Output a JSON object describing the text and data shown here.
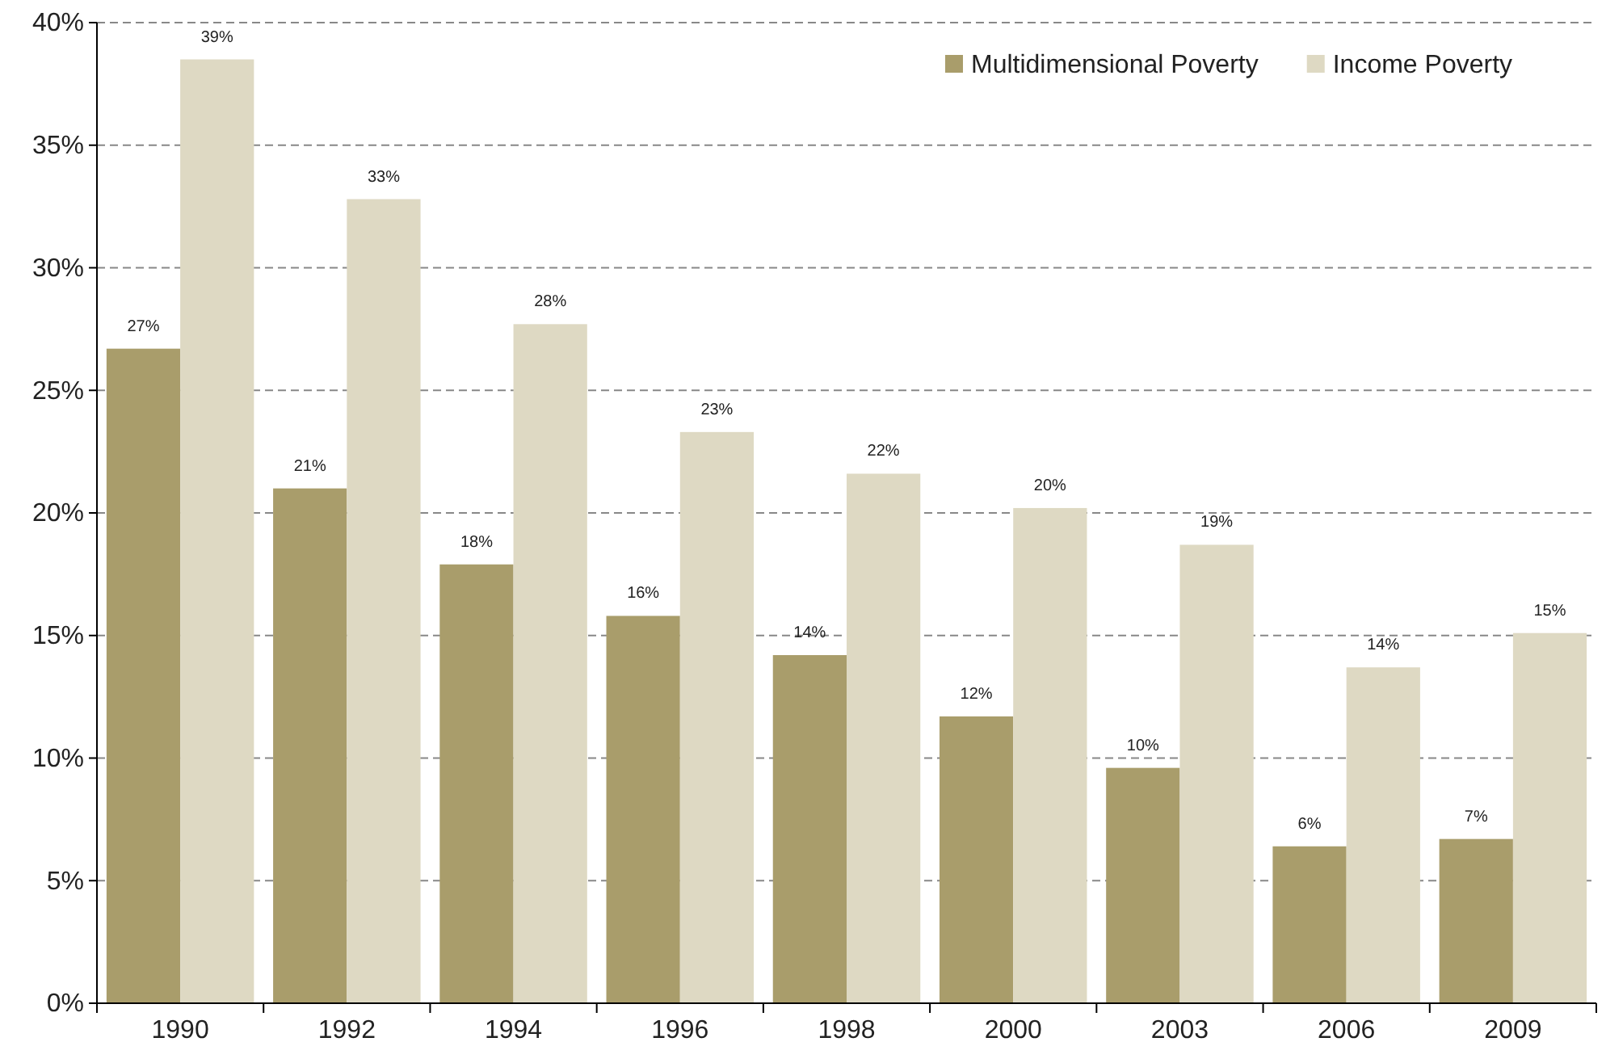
{
  "chart_data": {
    "type": "bar",
    "categories": [
      "1990",
      "1992",
      "1994",
      "1996",
      "1998",
      "2000",
      "2003",
      "2006",
      "2009"
    ],
    "series": [
      {
        "name": "Multidimensional Poverty",
        "color": "#a99d6b",
        "values": [
          26.7,
          21.0,
          17.9,
          15.8,
          14.2,
          11.7,
          9.6,
          6.4,
          6.7
        ],
        "value_labels": [
          "27%",
          "21%",
          "18%",
          "16%",
          "14%",
          "12%",
          "10%",
          "6%",
          "7%"
        ]
      },
      {
        "name": "Income Poverty",
        "color": "#ded9c3",
        "values": [
          38.5,
          32.8,
          27.7,
          23.3,
          21.6,
          20.2,
          18.7,
          13.7,
          15.1
        ],
        "value_labels": [
          "39%",
          "33%",
          "28%",
          "23%",
          "22%",
          "20%",
          "19%",
          "14%",
          "15%"
        ]
      }
    ],
    "ylim": [
      0,
      40
    ],
    "yticks": [
      {
        "value": 0,
        "label": "0%"
      },
      {
        "value": 5,
        "label": "5%"
      },
      {
        "value": 10,
        "label": "10%"
      },
      {
        "value": 15,
        "label": "15%"
      },
      {
        "value": 20,
        "label": "20%"
      },
      {
        "value": 25,
        "label": "25%"
      },
      {
        "value": 30,
        "label": "30%"
      },
      {
        "value": 35,
        "label": "35%"
      },
      {
        "value": 40,
        "label": "40%"
      }
    ],
    "grid": "y",
    "legend": "top right",
    "line_style": "dashed"
  }
}
